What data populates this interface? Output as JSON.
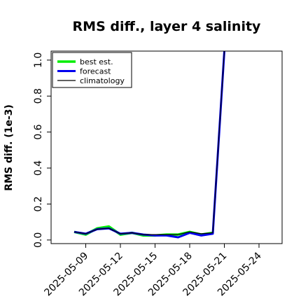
{
  "chart_data": {
    "type": "line",
    "title": "RMS diff., layer 4 salinity",
    "xlabel": "",
    "ylabel": "RMS diff. (1e-3)",
    "xlim": [
      "2025-05-06",
      "2025-05-26"
    ],
    "ylim": [
      -0.02,
      1.05
    ],
    "x_ticks": [
      "2025-05-09",
      "2025-05-12",
      "2025-05-15",
      "2025-05-18",
      "2025-05-21",
      "2025-05-24"
    ],
    "x_tick_colors": [
      "#000000",
      "#000000",
      "#228B22",
      "#000000",
      "#000000",
      "#000000"
    ],
    "y_ticks": [
      "0.0",
      "0.2",
      "0.4",
      "0.6",
      "0.8",
      "1.0"
    ],
    "y_tick_values": [
      0.0,
      0.2,
      0.4,
      0.6,
      0.8,
      1.0
    ],
    "legend": {
      "placement": "top-left"
    },
    "grid": false,
    "series": [
      {
        "name": "best est.",
        "color": "#00ee00",
        "points": [
          [
            "2025-05-08",
            0.045
          ],
          [
            "2025-05-09",
            0.03
          ],
          [
            "2025-05-10",
            0.065
          ],
          [
            "2025-05-11",
            0.075
          ],
          [
            "2025-05-12",
            0.03
          ],
          [
            "2025-05-13",
            0.04
          ],
          [
            "2025-05-14",
            0.025
          ],
          [
            "2025-05-15",
            0.025
          ],
          [
            "2025-05-16",
            0.03
          ],
          [
            "2025-05-17",
            0.03
          ],
          [
            "2025-05-18",
            0.045
          ],
          [
            "2025-05-19",
            0.03
          ],
          [
            "2025-05-20",
            0.04
          ]
        ]
      },
      {
        "name": "forecast",
        "color": "#0000ee",
        "points": [
          [
            "2025-05-08",
            0.045
          ],
          [
            "2025-05-09",
            0.035
          ],
          [
            "2025-05-10",
            0.06
          ],
          [
            "2025-05-11",
            0.065
          ],
          [
            "2025-05-12",
            0.035
          ],
          [
            "2025-05-13",
            0.04
          ],
          [
            "2025-05-14",
            0.03
          ],
          [
            "2025-05-15",
            0.025
          ],
          [
            "2025-05-16",
            0.025
          ],
          [
            "2025-05-17",
            0.015
          ],
          [
            "2025-05-18",
            0.04
          ],
          [
            "2025-05-19",
            0.025
          ],
          [
            "2025-05-20",
            0.035
          ],
          [
            "2025-05-21",
            1.05
          ]
        ]
      },
      {
        "name": "climatology",
        "color": "#000000",
        "points": [
          [
            "2025-05-08",
            0.045
          ],
          [
            "2025-05-09",
            0.035
          ],
          [
            "2025-05-10",
            0.06
          ],
          [
            "2025-05-11",
            0.065
          ],
          [
            "2025-05-12",
            0.035
          ],
          [
            "2025-05-13",
            0.04
          ],
          [
            "2025-05-14",
            0.03
          ],
          [
            "2025-05-15",
            0.03
          ],
          [
            "2025-05-16",
            0.03
          ],
          [
            "2025-05-17",
            0.03
          ],
          [
            "2025-05-18",
            0.045
          ],
          [
            "2025-05-19",
            0.035
          ],
          [
            "2025-05-20",
            0.04
          ],
          [
            "2025-05-21",
            1.05
          ]
        ]
      }
    ]
  }
}
